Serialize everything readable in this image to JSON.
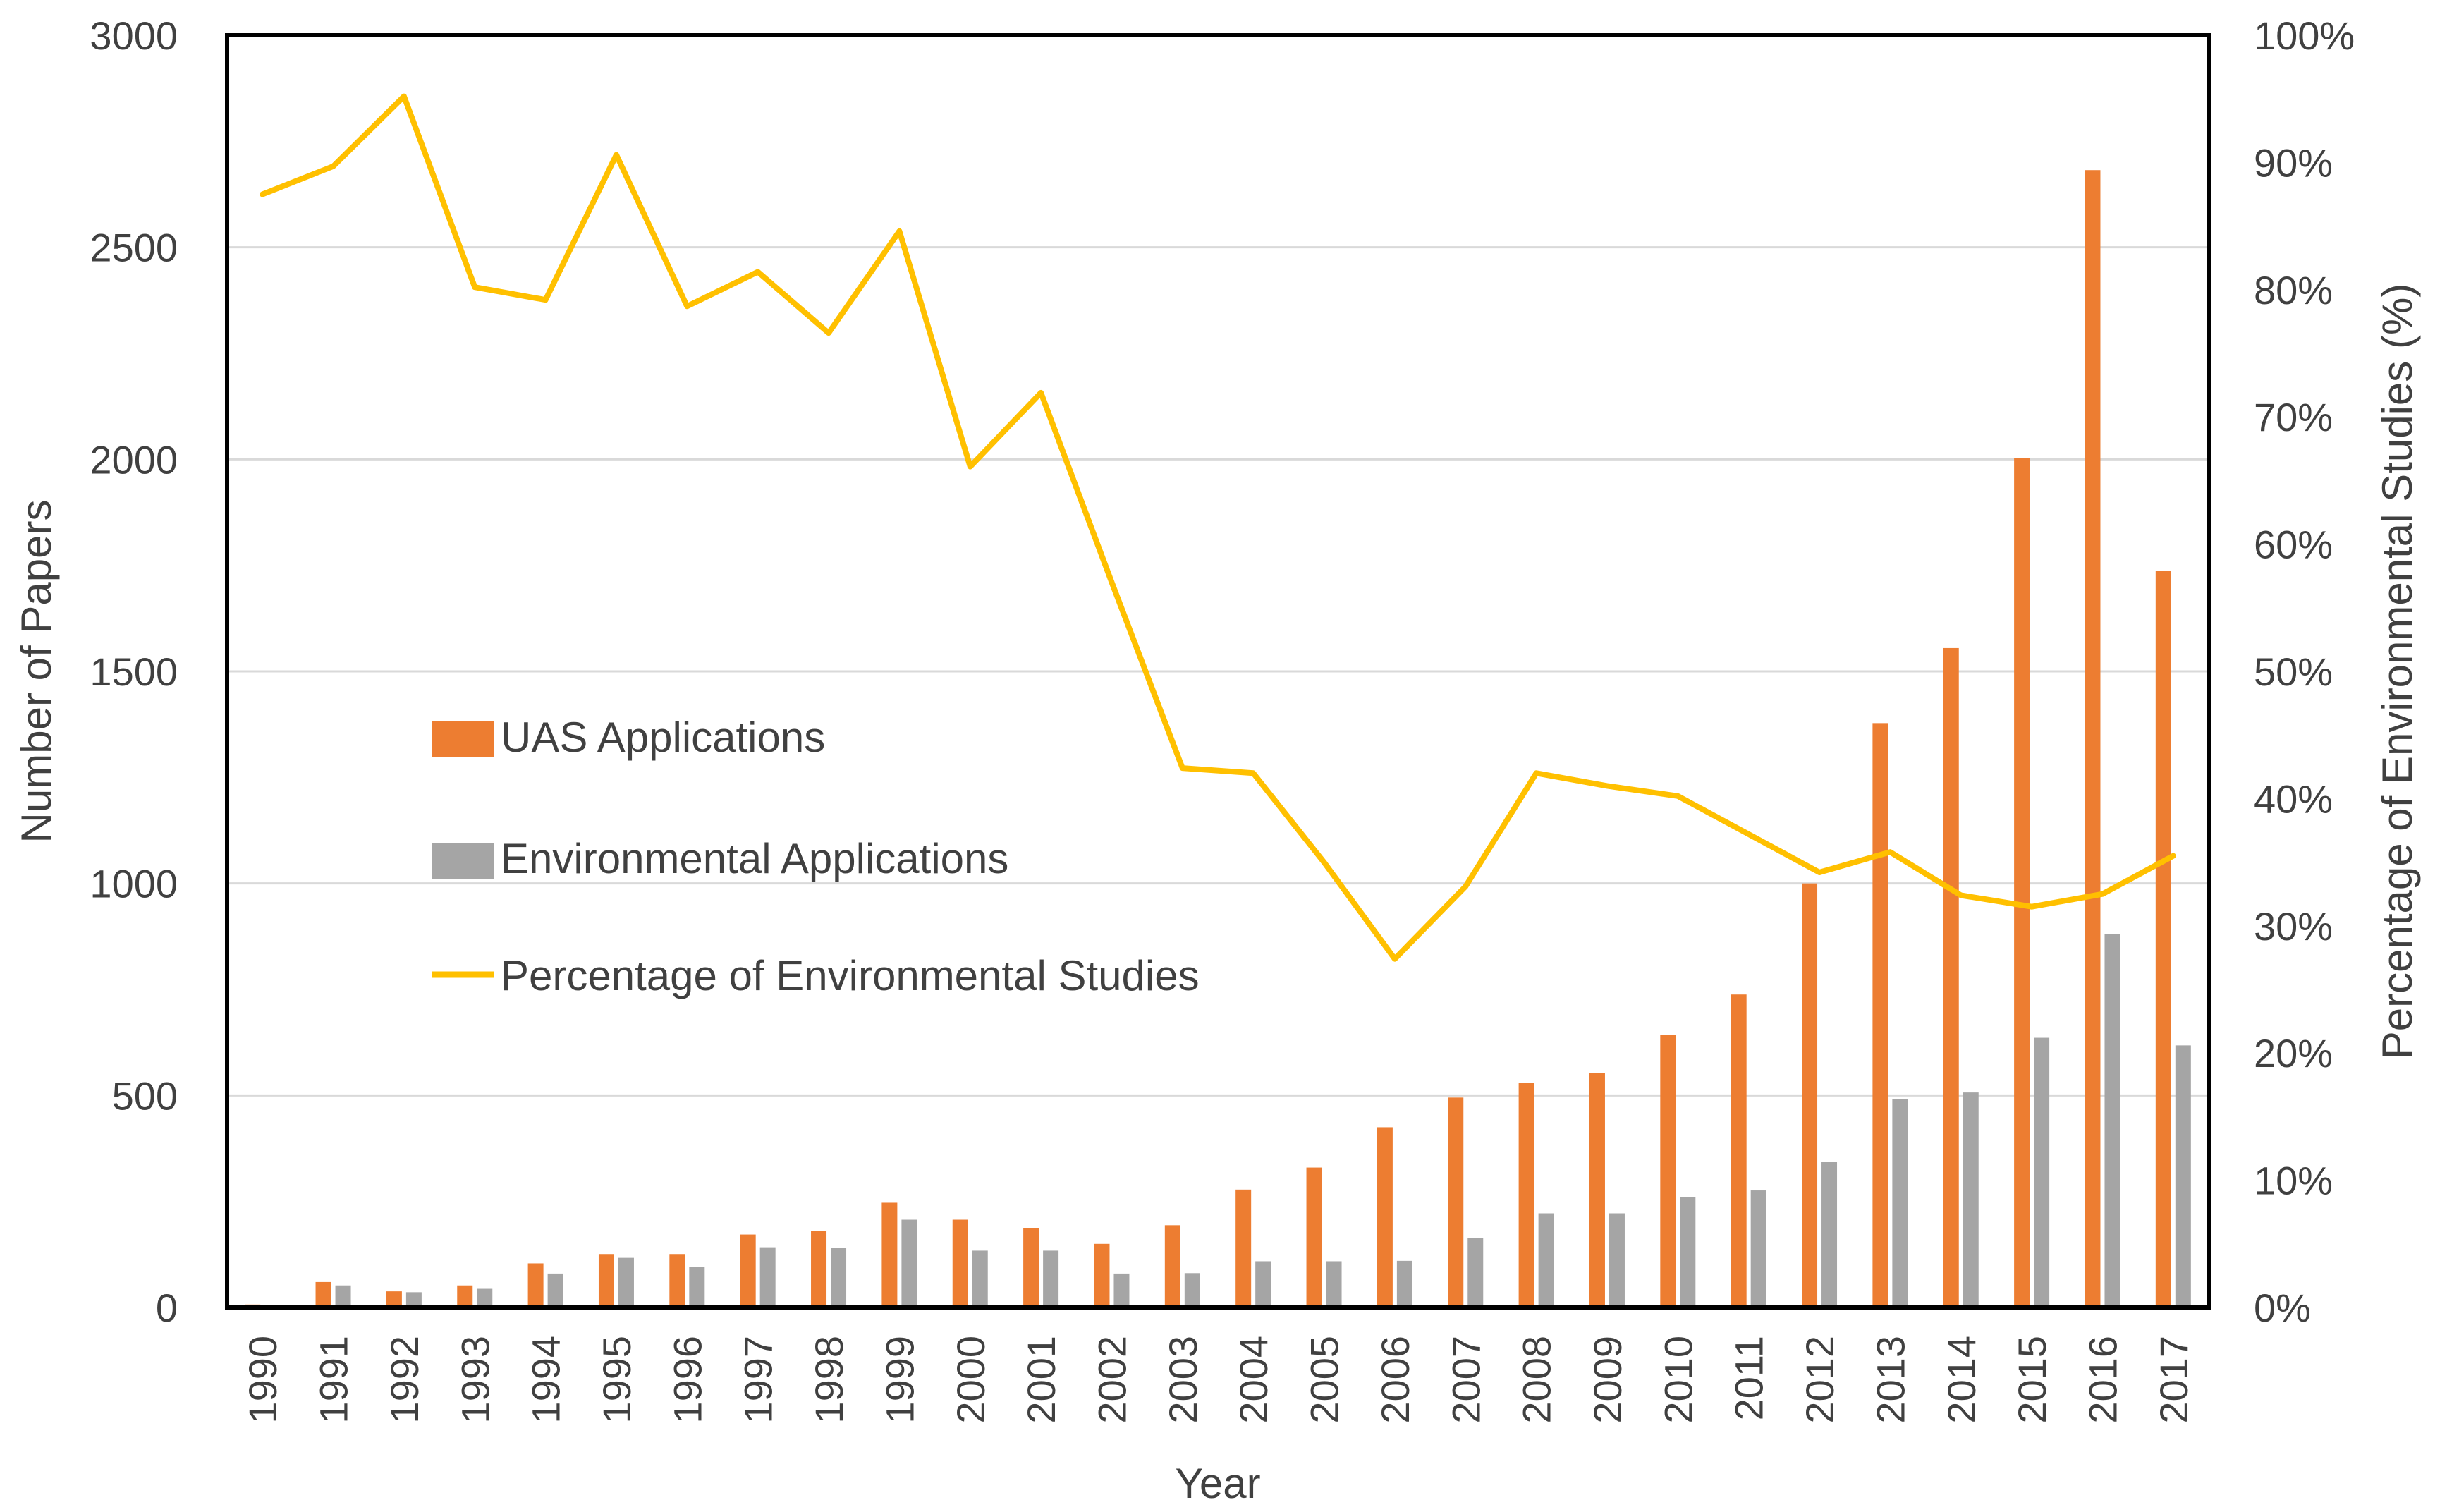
{
  "chart_data": {
    "type": "bar+line",
    "title": "",
    "xlabel": "Year",
    "ylabel": "Number of Papers",
    "y2label": "Percentage of Environmental Studies (%)",
    "ylim": [
      0,
      3000
    ],
    "y2lim": [
      0,
      100
    ],
    "yticks": [
      "0",
      "500",
      "1000",
      "1500",
      "2000",
      "2500",
      "3000"
    ],
    "y2ticks": [
      "0%",
      "10%",
      "20%",
      "30%",
      "40%",
      "50%",
      "60%",
      "70%",
      "80%",
      "90%",
      "100%"
    ],
    "grid": true,
    "legend_position": "center-left",
    "categories": [
      "1990",
      "1991",
      "1992",
      "1993",
      "1994",
      "1995",
      "1996",
      "1997",
      "1998",
      "1999",
      "2000",
      "2001",
      "2002",
      "2003",
      "2004",
      "2005",
      "2006",
      "2007",
      "2008",
      "2009",
      "2010",
      "2011",
      "2012",
      "2013",
      "2014",
      "2015",
      "2016",
      "2017"
    ],
    "series": [
      {
        "name": "UAS Applications",
        "type": "bar",
        "axis": "left",
        "color": "#ED7D31",
        "values": [
          7,
          60,
          38,
          52,
          104,
          126,
          126,
          172,
          180,
          247,
          207,
          187,
          150,
          194,
          278,
          330,
          425,
          495,
          530,
          553,
          643,
          738,
          1000,
          1378,
          1555,
          2003,
          2682,
          1737
        ]
      },
      {
        "name": "Environmental Applications",
        "type": "bar",
        "axis": "left",
        "color": "#A5A5A5",
        "values": [
          4,
          52,
          36,
          44,
          80,
          117,
          96,
          142,
          141,
          207,
          134,
          134,
          80,
          81,
          109,
          109,
          110,
          163,
          222,
          222,
          260,
          276,
          344,
          492,
          507,
          636,
          880,
          618
        ]
      },
      {
        "name": "Percentage of Environmental Studies",
        "type": "line",
        "axis": "right",
        "color": "#FFC000",
        "values": [
          87.5,
          89.7,
          95.2,
          80.2,
          79.2,
          90.6,
          78.7,
          81.4,
          76.6,
          84.6,
          66.1,
          71.9,
          57.0,
          42.4,
          42.0,
          35.0,
          27.4,
          33.1,
          42.0,
          41.0,
          40.2,
          37.2,
          34.2,
          35.8,
          32.4,
          31.5,
          32.5,
          35.5
        ]
      }
    ]
  }
}
